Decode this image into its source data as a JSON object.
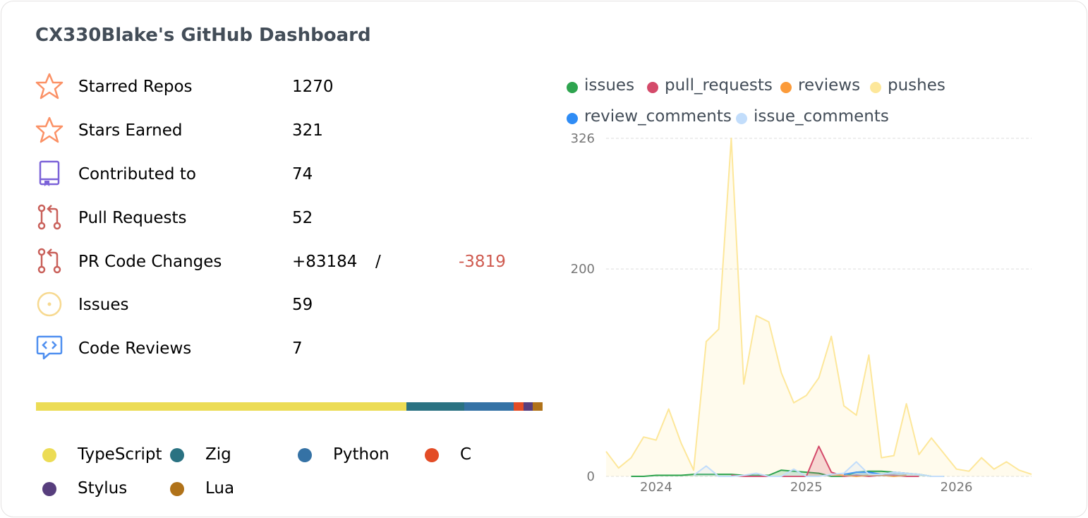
{
  "header": {
    "title": "CX330Blake's GitHub Dashboard"
  },
  "stats": [
    {
      "label": "Starred Repos",
      "value": "1270",
      "icon": "star-icon"
    },
    {
      "label": "Stars Earned",
      "value": "321",
      "icon": "star-icon"
    },
    {
      "label": "Contributed to",
      "value": "74",
      "icon": "repo-icon"
    },
    {
      "label": "Pull Requests",
      "value": "52",
      "icon": "pull-request-icon"
    },
    {
      "label": "PR Code Changes",
      "additions": "+83184",
      "separator": "/",
      "deletions": "-3819",
      "icon": "pull-request-icon"
    },
    {
      "label": "Issues",
      "value": "59",
      "icon": "issue-icon"
    },
    {
      "label": "Code Reviews",
      "value": "7",
      "icon": "code-review-icon"
    }
  ],
  "languages": [
    {
      "name": "TypeScript",
      "color": "#ecdc55",
      "share": 0.731
    },
    {
      "name": "Zig",
      "color": "#2a7282",
      "share": 0.115
    },
    {
      "name": "Python",
      "color": "#3572a5",
      "share": 0.097
    },
    {
      "name": "C",
      "color": "#e34c26",
      "share": 0.02
    },
    {
      "name": "Stylus",
      "color": "#573e7d",
      "share": 0.018
    },
    {
      "name": "Lua",
      "color": "#b07219",
      "share": 0.019
    }
  ],
  "colors": {
    "issues": "#2ea44f",
    "pull_requests": "#d44a6a",
    "reviews": "#fb9b3a",
    "pushes": "#fde79a",
    "review_comments": "#2f8cf5",
    "issue_comments": "#c2ddfb",
    "icon_star": "#fb9166",
    "icon_repo": "#7b62d8",
    "icon_pr": "#c9605a",
    "icon_issue": "#f7d990",
    "icon_review": "#4f8ff0"
  },
  "chart_data": {
    "type": "area",
    "ylim": [
      0,
      326
    ],
    "yticks": [
      "0",
      "200",
      "326"
    ],
    "xticks": [
      "2024",
      "2025",
      "2026"
    ],
    "x": [
      "2023-09",
      "2023-10",
      "2023-11",
      "2023-12",
      "2024-01",
      "2024-02",
      "2024-03",
      "2024-04",
      "2024-05",
      "2024-06",
      "2024-07",
      "2024-08",
      "2024-09",
      "2024-10",
      "2024-11",
      "2024-12",
      "2025-01",
      "2025-02",
      "2025-03",
      "2025-04",
      "2025-05",
      "2025-06",
      "2025-07",
      "2025-08",
      "2025-09",
      "2025-10",
      "2025-11",
      "2025-12",
      "2026-01",
      "2026-02",
      "2026-03",
      "2026-04",
      "2026-05",
      "2026-06",
      "2026-07"
    ],
    "series": [
      {
        "name": "pushes",
        "values": [
          24,
          8,
          18,
          38,
          35,
          65,
          32,
          6,
          130,
          142,
          326,
          89,
          155,
          149,
          100,
          71,
          78,
          95,
          135,
          68,
          59,
          117,
          18,
          20,
          70,
          21,
          37,
          22,
          7,
          5,
          18,
          7,
          14,
          6,
          2
        ]
      },
      {
        "name": "issues",
        "values": [
          null,
          null,
          0,
          0,
          1,
          1,
          1,
          2,
          2,
          2,
          2,
          1,
          1,
          1,
          6,
          5,
          4,
          3,
          0,
          0,
          4,
          5,
          5,
          4,
          3,
          2,
          0,
          0,
          null,
          null,
          null,
          null,
          null,
          null,
          null
        ]
      },
      {
        "name": "pull_requests",
        "values": [
          null,
          null,
          null,
          null,
          null,
          null,
          null,
          null,
          null,
          null,
          1,
          0,
          0,
          0,
          0,
          0,
          0,
          29,
          4,
          0,
          1,
          0,
          1,
          1,
          0,
          0,
          null,
          null,
          null,
          null,
          null,
          null,
          null,
          null,
          null
        ]
      },
      {
        "name": "reviews",
        "values": [
          null,
          null,
          null,
          null,
          null,
          null,
          null,
          null,
          null,
          null,
          null,
          null,
          null,
          null,
          null,
          null,
          null,
          null,
          2,
          1,
          0,
          1,
          1,
          0,
          1,
          null,
          null,
          null,
          null,
          null,
          null,
          null,
          null,
          null,
          null
        ]
      },
      {
        "name": "review_comments",
        "values": [
          null,
          null,
          null,
          null,
          null,
          null,
          null,
          null,
          null,
          null,
          null,
          null,
          null,
          null,
          null,
          null,
          null,
          null,
          null,
          2,
          4,
          4,
          2,
          4,
          3,
          null,
          null,
          null,
          null,
          null,
          null,
          null,
          null,
          null,
          null
        ]
      },
      {
        "name": "issue_comments",
        "values": [
          null,
          null,
          null,
          null,
          null,
          null,
          null,
          1,
          10,
          0,
          0,
          1,
          3,
          0,
          0,
          7,
          0,
          0,
          2,
          3,
          14,
          2,
          2,
          4,
          3,
          2,
          0,
          0,
          null,
          null,
          null,
          null,
          null,
          null,
          null
        ]
      }
    ]
  }
}
